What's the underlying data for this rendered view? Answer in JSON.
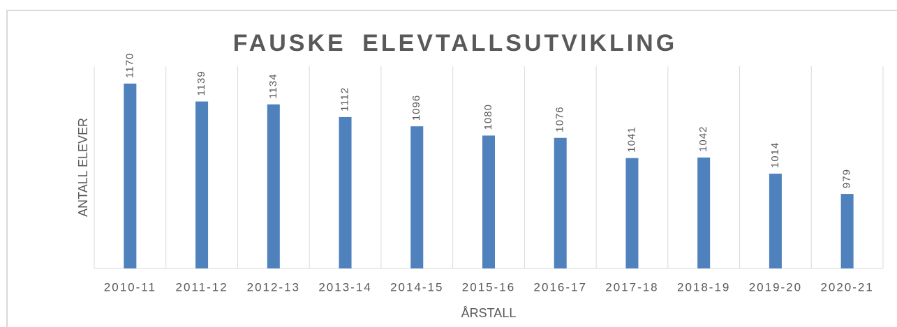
{
  "chart_data": {
    "type": "bar",
    "title": "FAUSKE ELEVTALLSUTVIKLING",
    "x_label": "ÅRSTALL",
    "y_label": "ANTALL ELEVER",
    "categories": [
      "2010-11",
      "2011-12",
      "2012-13",
      "2013-14",
      "2014-15",
      "2015-16",
      "2016-17",
      "2017-18",
      "2018-19",
      "2019-20",
      "2020-21"
    ],
    "values": [
      1170,
      1139,
      1134,
      1112,
      1096,
      1080,
      1076,
      1041,
      1042,
      1014,
      979
    ],
    "color": "#4f81bd",
    "ylim": [
      850,
      1200
    ],
    "grid": true
  }
}
